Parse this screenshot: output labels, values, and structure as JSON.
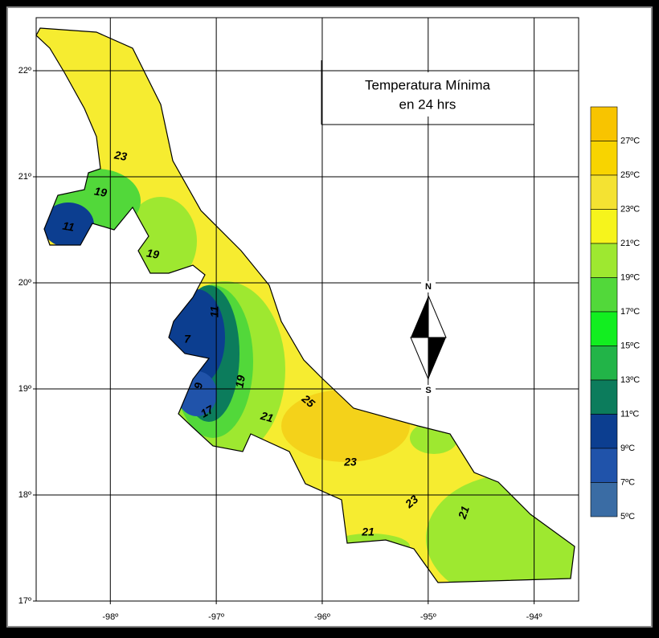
{
  "title": [
    "Temperatura Mínima",
    "en 24 hrs"
  ],
  "map": {
    "lonlim": [
      -98.7,
      -93.58
    ],
    "latlim": [
      17,
      22.5
    ],
    "lon_ticks": [
      {
        "value": -98,
        "label": "-98º"
      },
      {
        "value": -97,
        "label": "-97º"
      },
      {
        "value": -96,
        "label": "-96º"
      },
      {
        "value": -95,
        "label": "-95º"
      },
      {
        "value": -94,
        "label": "-94º"
      }
    ],
    "lat_ticks": [
      {
        "value": 22,
        "label": "22º"
      },
      {
        "value": 21,
        "label": "21º"
      },
      {
        "value": 20,
        "label": "20º"
      },
      {
        "value": 19,
        "label": "19º"
      },
      {
        "value": 18,
        "label": "18º"
      },
      {
        "value": 17,
        "label": "17º"
      }
    ]
  },
  "compass": {
    "north": "N",
    "south": "S"
  },
  "legend": {
    "items": [
      {
        "label": "27ºC",
        "color": "#f8c400"
      },
      {
        "label": "25ºC",
        "color": "#f8d400"
      },
      {
        "label": "23ºC",
        "color": "#f4e232"
      },
      {
        "label": "21ºC",
        "color": "#f6f41c"
      },
      {
        "label": "19ºC",
        "color": "#9ee830"
      },
      {
        "label": "17ºC",
        "color": "#52d83a"
      },
      {
        "label": "15ºC",
        "color": "#12ee20"
      },
      {
        "label": "13ºC",
        "color": "#22b448"
      },
      {
        "label": "11ºC",
        "color": "#0c7c5c"
      },
      {
        "label": "9ºC",
        "color": "#0c3e90"
      },
      {
        "label": "7ºC",
        "color": "#2053aa"
      },
      {
        "label": "5ºC",
        "color": "#3a6ca4"
      }
    ]
  },
  "contour_labels": [
    23,
    19,
    11,
    19,
    11,
    7,
    9,
    17,
    19,
    21,
    25,
    23,
    23,
    21,
    21
  ]
}
